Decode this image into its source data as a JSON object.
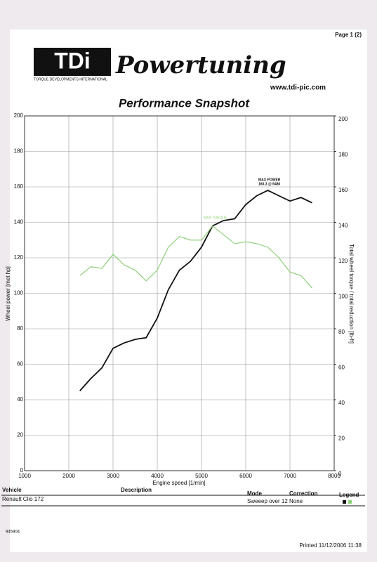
{
  "header": {
    "page": "Page 1 (2)",
    "logo": "TDi",
    "brand": "Powertuning",
    "company": "TORQUE DEVELOPMENTS INTERNATIONAL",
    "url": "www.tdi-pic.com"
  },
  "chart_data": {
    "type": "line",
    "title": "Performance Snapshot",
    "x_label": "Engine speed [1/min]",
    "y_label": "Wheel power [met hp]",
    "y2_label": "Total wheel torque / total reduction [lb-ft]",
    "x": [
      2250,
      2500,
      2750,
      3000,
      3250,
      3500,
      3750,
      4000,
      4250,
      4500,
      4750,
      5000,
      5250,
      5500,
      5750,
      6000,
      6250,
      6500,
      6750,
      7000,
      7250,
      7500
    ],
    "series": [
      {
        "color": "#111111",
        "values": [
          45,
          52,
          58,
          69,
          72,
          74,
          75,
          86,
          102,
          113,
          118,
          126,
          138,
          141,
          142,
          150,
          155,
          158,
          155,
          152,
          154,
          151
        ]
      },
      {
        "color": "#8fd07a",
        "axis": "y2",
        "values": [
          110,
          115,
          114,
          122,
          116,
          113,
          107,
          113,
          126,
          132,
          130,
          130,
          138,
          133,
          128,
          129,
          128,
          126,
          120,
          112,
          110,
          103
        ]
      }
    ],
    "xlim": [
      1000,
      8000
    ],
    "xticks": [
      1000,
      2000,
      3000,
      4000,
      5000,
      6000,
      7000,
      8000
    ],
    "ylim": [
      0,
      200
    ],
    "yticks": [
      0,
      20,
      40,
      60,
      80,
      100,
      120,
      140,
      160,
      180,
      200
    ],
    "y2lim": [
      0,
      200
    ],
    "y2ticks": [
      0,
      20,
      40,
      60,
      80,
      100,
      120,
      140,
      160,
      180,
      200
    ],
    "grid": true,
    "annotations": {
      "max_power": "MAX POWER",
      "max_power_value": "160.3 @ 6480",
      "max_torque": "MAX TORQUE"
    }
  },
  "table": {
    "headers": [
      "Vehicle",
      "Description",
      "Mode",
      "Correction",
      "Legend"
    ],
    "vehicle": "Renault Clio 172",
    "mode": "Sweeep over 12",
    "correction": "None"
  },
  "footer": {
    "id": "945904",
    "printed": "Printed 11/12/2006 11:38"
  }
}
